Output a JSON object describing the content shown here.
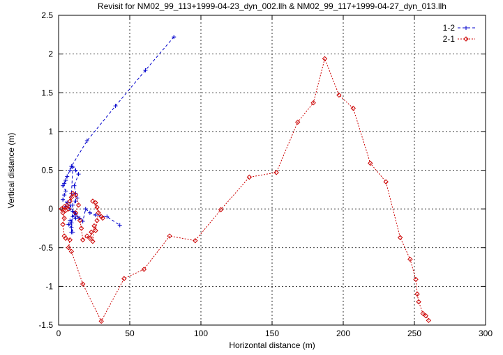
{
  "chart_data": {
    "type": "scatter",
    "title": "Revisit for NM02_99_113+1999-04-23_dyn_002.llh & NM02_99_117+1999-04-27_dyn_013.llh",
    "xlabel": "Horizontal distance (m)",
    "ylabel": "Vertical distance (m)",
    "xlim": [
      0,
      300
    ],
    "ylim": [
      -1.5,
      2.5
    ],
    "xticks": [
      "0",
      "50",
      "100",
      "150",
      "200",
      "250",
      "300"
    ],
    "yticks": [
      "-1.5",
      "-1",
      "-0.5",
      "0",
      "0.5",
      "1",
      "1.5",
      "2",
      "2.5"
    ],
    "grid": true,
    "legend_position": "top-right",
    "series": [
      {
        "name": "1-2",
        "color": "#0000cc",
        "marker": "plus",
        "line": "dashed",
        "points": [
          [
            81,
            2.22
          ],
          [
            61,
            1.79
          ],
          [
            40,
            1.33
          ],
          [
            20,
            0.88
          ],
          [
            9,
            0.55
          ],
          [
            8,
            0.5
          ],
          [
            6,
            0.42
          ],
          [
            5,
            0.37
          ],
          [
            4,
            0.33
          ],
          [
            3,
            0.3
          ],
          [
            5,
            0.23
          ],
          [
            4,
            0.18
          ],
          [
            3,
            0.12
          ],
          [
            6,
            0.08
          ],
          [
            5,
            0.03
          ],
          [
            8,
            0.0
          ],
          [
            10,
            -0.03
          ],
          [
            12,
            -0.06
          ],
          [
            10,
            -0.1
          ],
          [
            12,
            -0.12
          ],
          [
            8,
            -0.15
          ],
          [
            9,
            -0.18
          ],
          [
            7,
            -0.2
          ],
          [
            9,
            -0.24
          ],
          [
            10,
            -0.3
          ],
          [
            9,
            -0.3
          ],
          [
            10,
            0.05
          ],
          [
            12,
            0.1
          ],
          [
            13,
            0.14
          ],
          [
            12,
            0.2
          ],
          [
            11,
            0.3
          ],
          [
            14,
            0.45
          ],
          [
            12,
            0.5
          ],
          [
            10,
            0.54
          ],
          [
            9,
            0.2
          ],
          [
            8,
            0.05
          ],
          [
            11,
            -0.05
          ],
          [
            13,
            -0.1
          ],
          [
            15,
            -0.12
          ],
          [
            17,
            -0.16
          ],
          [
            19,
            0.0
          ],
          [
            22,
            -0.05
          ],
          [
            26,
            -0.08
          ],
          [
            34,
            -0.1
          ],
          [
            43,
            -0.21
          ]
        ]
      },
      {
        "name": "2-1",
        "color": "#cc0000",
        "marker": "diamond",
        "line": "dotted",
        "points": [
          [
            260,
            -1.44
          ],
          [
            258,
            -1.38
          ],
          [
            256,
            -1.35
          ],
          [
            253,
            -1.2
          ],
          [
            252,
            -1.1
          ],
          [
            251,
            -0.91
          ],
          [
            247,
            -0.65
          ],
          [
            240,
            -0.37
          ],
          [
            230,
            0.35
          ],
          [
            219,
            0.59
          ],
          [
            207,
            1.3
          ],
          [
            197,
            1.47
          ],
          [
            187,
            1.94
          ],
          [
            179,
            1.37
          ],
          [
            168,
            1.12
          ],
          [
            153,
            0.47
          ],
          [
            134,
            0.41
          ],
          [
            114,
            -0.01
          ],
          [
            96,
            -0.41
          ],
          [
            78,
            -0.35
          ],
          [
            60,
            -0.78
          ],
          [
            46,
            -0.9
          ],
          [
            30,
            -1.45
          ],
          [
            17,
            -0.97
          ],
          [
            9,
            -0.55
          ],
          [
            7,
            -0.5
          ],
          [
            8,
            -0.4
          ],
          [
            5,
            -0.38
          ],
          [
            4,
            -0.35
          ],
          [
            3,
            -0.2
          ],
          [
            4,
            -0.12
          ],
          [
            3,
            -0.05
          ],
          [
            2,
            0.0
          ],
          [
            4,
            0.03
          ],
          [
            5,
            -0.02
          ],
          [
            6,
            0.05
          ],
          [
            7,
            0.0
          ],
          [
            8,
            0.1
          ],
          [
            9,
            0.15
          ],
          [
            10,
            0.2
          ],
          [
            12,
            0.18
          ],
          [
            14,
            0.05
          ],
          [
            12,
            -0.05
          ],
          [
            15,
            -0.15
          ],
          [
            16,
            -0.25
          ],
          [
            17,
            -0.4
          ],
          [
            20,
            -0.35
          ],
          [
            22,
            -0.38
          ],
          [
            23,
            -0.3
          ],
          [
            24,
            -0.42
          ],
          [
            25,
            -0.22
          ],
          [
            26,
            -0.28
          ],
          [
            27,
            -0.15
          ],
          [
            28,
            -0.05
          ],
          [
            27,
            0.02
          ],
          [
            26,
            0.08
          ],
          [
            24,
            0.1
          ],
          [
            30,
            -0.1
          ],
          [
            31,
            -0.12
          ]
        ]
      }
    ]
  }
}
